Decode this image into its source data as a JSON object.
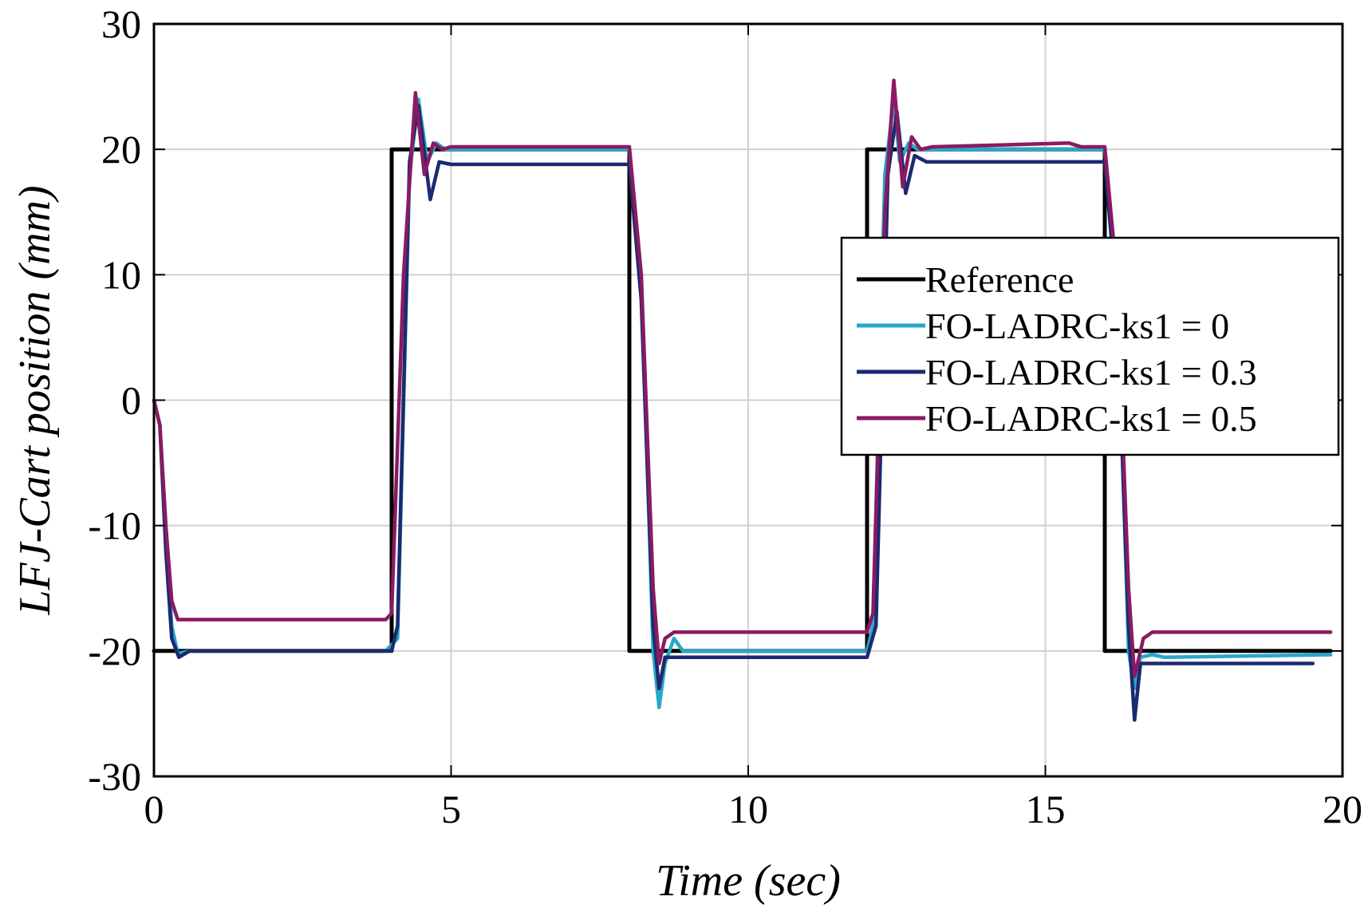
{
  "chart_data": {
    "type": "line",
    "title": "",
    "xlabel": "Time (sec)",
    "ylabel": "LFJ-Cart position (mm)",
    "xlim": [
      0,
      20
    ],
    "ylim": [
      -30,
      30
    ],
    "xticks": [
      0,
      5,
      10,
      15,
      20
    ],
    "yticks": [
      -30,
      -20,
      -10,
      0,
      10,
      20,
      30
    ],
    "grid": true,
    "legend_position": "right",
    "series": [
      {
        "name": "Reference",
        "color": "#000000",
        "x": [
          0,
          4.0,
          4.0,
          8.0,
          8.0,
          12.0,
          12.0,
          16.0,
          16.0,
          19.8
        ],
        "y": [
          -20,
          -20,
          20,
          20,
          -20,
          -20,
          20,
          20,
          -20,
          -20
        ]
      },
      {
        "name": "FO-LADRC-ks1 = 0",
        "color": "#27a8c8",
        "x": [
          0,
          0.1,
          0.2,
          0.3,
          0.4,
          0.6,
          3.9,
          4.1,
          4.3,
          4.45,
          4.6,
          4.75,
          4.9,
          5.1,
          5.5,
          8.0,
          8.2,
          8.4,
          8.5,
          8.6,
          8.75,
          8.9,
          9.2,
          12.0,
          12.1,
          12.3,
          12.45,
          12.55,
          12.7,
          12.85,
          13.0,
          13.3,
          16.0,
          16.2,
          16.4,
          16.5,
          16.6,
          16.8,
          17.0,
          19.8
        ],
        "y": [
          0,
          -2,
          -10,
          -18,
          -20.2,
          -20,
          -20,
          -19,
          18,
          24,
          19,
          20.5,
          20,
          20,
          20,
          20,
          10,
          -20,
          -24.5,
          -21,
          -19,
          -20,
          -20,
          -20,
          -18,
          18,
          24,
          19,
          20.5,
          20,
          20,
          20,
          20,
          10,
          -20,
          -23,
          -20.5,
          -20.3,
          -20.5,
          -20.3
        ]
      },
      {
        "name": "FO-LADRC-ks1 = 0.3",
        "color": "#1b2a70",
        "x": [
          0,
          0.1,
          0.2,
          0.3,
          0.42,
          0.6,
          4.0,
          4.1,
          4.3,
          4.45,
          4.65,
          4.8,
          5.0,
          5.5,
          8.0,
          8.2,
          8.4,
          8.5,
          8.6,
          8.8,
          12.0,
          12.15,
          12.35,
          12.5,
          12.65,
          12.8,
          13.0,
          15.5,
          16.0,
          16.2,
          16.4,
          16.5,
          16.6,
          16.8,
          19.5
        ],
        "y": [
          0,
          -2,
          -12,
          -19,
          -20.5,
          -20,
          -20,
          -18,
          19,
          23.5,
          16,
          19,
          18.8,
          18.8,
          18.8,
          8,
          -18,
          -23,
          -20.5,
          -20.5,
          -20.5,
          -18,
          18,
          23,
          16.5,
          19.5,
          19,
          19,
          19,
          8,
          -18,
          -25.5,
          -21,
          -21,
          -21
        ]
      },
      {
        "name": "FO-LADRC-ks1 = 0.5",
        "color": "#8a1a62",
        "x": [
          0,
          0.1,
          0.2,
          0.3,
          0.4,
          3.9,
          4.0,
          4.2,
          4.4,
          4.55,
          4.7,
          4.85,
          5.0,
          5.2,
          8.0,
          8.2,
          8.4,
          8.5,
          8.6,
          8.75,
          12.0,
          12.1,
          12.3,
          12.45,
          12.6,
          12.75,
          12.9,
          13.1,
          15.4,
          15.6,
          16.0,
          16.2,
          16.4,
          16.5,
          16.65,
          16.8,
          19.8
        ],
        "y": [
          0,
          -2,
          -10,
          -16,
          -17.5,
          -17.5,
          -17,
          10,
          24.5,
          18,
          20.5,
          20,
          20.2,
          20.2,
          20.2,
          10,
          -15,
          -21,
          -19,
          -18.5,
          -18.5,
          -17,
          15,
          25.5,
          17,
          21,
          20,
          20.2,
          20.5,
          20.2,
          20.2,
          10,
          -15,
          -22,
          -19,
          -18.5,
          -18.5
        ]
      }
    ]
  }
}
